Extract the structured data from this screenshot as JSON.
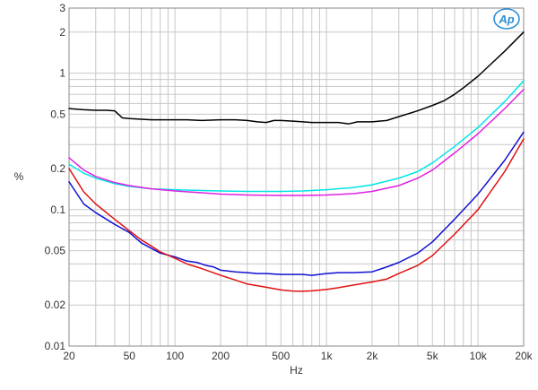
{
  "chart_data": {
    "type": "line",
    "title": "",
    "xlabel": "Hz",
    "ylabel": "%",
    "x_scale": "log",
    "y_scale": "log",
    "xlim": [
      20,
      20000
    ],
    "ylim": [
      0.01,
      3
    ],
    "grid": true,
    "legend": "none",
    "x_ticks": [
      {
        "value": 20,
        "label": "20"
      },
      {
        "value": 50,
        "label": "50"
      },
      {
        "value": 100,
        "label": "100"
      },
      {
        "value": 200,
        "label": "200"
      },
      {
        "value": 500,
        "label": "500"
      },
      {
        "value": 1000,
        "label": "1k"
      },
      {
        "value": 2000,
        "label": "2k"
      },
      {
        "value": 5000,
        "label": "5k"
      },
      {
        "value": 10000,
        "label": "10k"
      },
      {
        "value": 20000,
        "label": "20k"
      }
    ],
    "y_ticks": [
      {
        "value": 3,
        "label": "3"
      },
      {
        "value": 2,
        "label": "2"
      },
      {
        "value": 1,
        "label": "1"
      },
      {
        "value": 0.5,
        "label": "0.5"
      },
      {
        "value": 0.2,
        "label": "0.2"
      },
      {
        "value": 0.1,
        "label": "0.1"
      },
      {
        "value": 0.05,
        "label": "0.05"
      },
      {
        "value": 0.02,
        "label": "0.02"
      },
      {
        "value": 0.01,
        "label": "0.01"
      }
    ],
    "series": [
      {
        "color": "#000000",
        "x": [
          20,
          25,
          30,
          35,
          40,
          45,
          50,
          60,
          70,
          80,
          100,
          120,
          150,
          200,
          250,
          300,
          350,
          400,
          450,
          500,
          600,
          700,
          800,
          1000,
          1200,
          1400,
          1600,
          2000,
          2500,
          3000,
          4000,
          5000,
          6000,
          7000,
          8000,
          10000,
          12000,
          15000,
          20000
        ],
        "y": [
          0.55,
          0.54,
          0.535,
          0.535,
          0.53,
          0.47,
          0.465,
          0.46,
          0.455,
          0.455,
          0.455,
          0.455,
          0.45,
          0.455,
          0.455,
          0.45,
          0.44,
          0.435,
          0.45,
          0.45,
          0.445,
          0.44,
          0.435,
          0.435,
          0.435,
          0.425,
          0.44,
          0.44,
          0.45,
          0.48,
          0.53,
          0.58,
          0.63,
          0.7,
          0.78,
          0.95,
          1.15,
          1.45,
          2.0
        ]
      },
      {
        "color": "#00e5e5",
        "x": [
          20,
          25,
          30,
          40,
          50,
          70,
          100,
          150,
          200,
          300,
          500,
          700,
          1000,
          1500,
          2000,
          3000,
          4000,
          5000,
          7000,
          10000,
          15000,
          20000
        ],
        "y": [
          0.215,
          0.185,
          0.17,
          0.155,
          0.148,
          0.142,
          0.14,
          0.138,
          0.137,
          0.136,
          0.136,
          0.137,
          0.14,
          0.145,
          0.152,
          0.17,
          0.19,
          0.22,
          0.29,
          0.4,
          0.62,
          0.88
        ]
      },
      {
        "color": "#e020e0",
        "x": [
          20,
          25,
          30,
          40,
          50,
          70,
          100,
          150,
          200,
          300,
          500,
          700,
          1000,
          1500,
          2000,
          3000,
          4000,
          5000,
          7000,
          10000,
          15000,
          20000
        ],
        "y": [
          0.24,
          0.195,
          0.175,
          0.158,
          0.15,
          0.142,
          0.137,
          0.133,
          0.13,
          0.128,
          0.127,
          0.127,
          0.128,
          0.131,
          0.136,
          0.15,
          0.17,
          0.195,
          0.26,
          0.36,
          0.55,
          0.76
        ]
      },
      {
        "color": "#1010d0",
        "x": [
          20,
          25,
          30,
          40,
          50,
          60,
          70,
          80,
          100,
          120,
          140,
          160,
          180,
          200,
          250,
          300,
          350,
          400,
          500,
          600,
          700,
          800,
          1000,
          1200,
          1500,
          2000,
          2500,
          3000,
          4000,
          5000,
          7000,
          10000,
          15000,
          20000
        ],
        "y": [
          0.16,
          0.11,
          0.095,
          0.078,
          0.068,
          0.057,
          0.052,
          0.048,
          0.045,
          0.042,
          0.041,
          0.039,
          0.038,
          0.036,
          0.035,
          0.0345,
          0.034,
          0.034,
          0.0335,
          0.0335,
          0.0335,
          0.033,
          0.034,
          0.0345,
          0.0345,
          0.035,
          0.038,
          0.041,
          0.048,
          0.058,
          0.085,
          0.13,
          0.23,
          0.37
        ]
      },
      {
        "color": "#e01010",
        "x": [
          20,
          25,
          30,
          40,
          50,
          60,
          70,
          80,
          100,
          120,
          150,
          200,
          250,
          300,
          400,
          500,
          600,
          700,
          800,
          1000,
          1200,
          1500,
          2000,
          2500,
          3000,
          4000,
          5000,
          7000,
          10000,
          15000,
          20000
        ],
        "y": [
          0.2,
          0.135,
          0.11,
          0.085,
          0.07,
          0.06,
          0.054,
          0.049,
          0.044,
          0.04,
          0.037,
          0.033,
          0.0305,
          0.0285,
          0.027,
          0.0258,
          0.0253,
          0.0252,
          0.0254,
          0.026,
          0.0268,
          0.028,
          0.0295,
          0.031,
          0.034,
          0.039,
          0.046,
          0.066,
          0.1,
          0.19,
          0.33
        ]
      }
    ]
  },
  "logo": {
    "text": "Ap"
  }
}
